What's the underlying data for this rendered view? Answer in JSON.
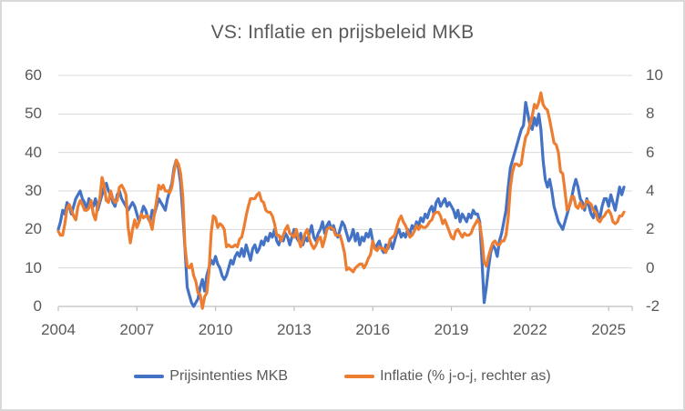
{
  "window": {
    "title": "VS: Inflatie en prijsbeleid MKB"
  },
  "colors": {
    "series_blue": "#4472C4",
    "series_orange": "#ED7D31",
    "gridline": "#D9D9D9",
    "axis_line": "#BFBFBF",
    "text": "#595959",
    "border": "#D9D9D9",
    "background": "#FFFFFF"
  },
  "chart_data": {
    "type": "line",
    "title": "VS: Inflatie en prijsbeleid MKB",
    "xlabel": "",
    "ylabel_left": "",
    "ylabel_right": "",
    "grid": true,
    "legend_position": "bottom",
    "x_start_year": 2004,
    "x_months_per_point": 1,
    "x_tick_years": [
      2004,
      2007,
      2010,
      2013,
      2016,
      2019,
      2022,
      2025
    ],
    "left_axis": {
      "range": [
        0,
        60
      ],
      "ticks": [
        0,
        10,
        20,
        30,
        40,
        50,
        60
      ]
    },
    "right_axis": {
      "range": [
        -2,
        10
      ],
      "ticks": [
        -2,
        0,
        2,
        4,
        6,
        8,
        10
      ]
    },
    "series": [
      {
        "name": "Prijsintenties MKB",
        "axis": "left",
        "color": "#4472C4",
        "values": [
          20,
          22,
          25,
          24,
          27,
          26,
          24,
          26,
          28,
          29,
          30,
          28,
          27,
          25,
          28,
          27,
          26,
          28,
          25,
          27,
          29,
          31,
          32,
          30,
          29,
          27,
          26,
          29,
          30,
          28,
          27,
          26,
          25,
          26,
          27,
          26,
          24,
          22,
          24,
          26,
          25,
          23,
          22,
          25,
          24,
          26,
          28,
          27,
          26,
          25,
          28,
          30,
          32,
          36,
          38,
          36,
          32,
          24,
          15,
          5,
          3,
          1,
          0,
          1,
          2,
          5,
          7,
          4,
          8,
          10,
          12,
          11,
          13,
          11,
          10,
          8,
          7,
          8,
          10,
          12,
          11,
          13,
          14,
          13,
          15,
          13,
          16,
          14,
          12,
          15,
          16,
          14,
          15,
          17,
          16,
          18,
          17,
          19,
          18,
          20,
          17,
          16,
          18,
          17,
          19,
          18,
          16,
          18,
          20,
          18,
          17,
          19,
          16,
          18,
          17,
          19,
          21,
          18,
          17,
          19,
          20,
          22,
          19,
          21,
          22,
          20,
          21,
          19,
          18,
          20,
          22,
          21,
          19,
          17,
          18,
          20,
          17,
          19,
          16,
          18,
          17,
          19,
          18,
          20,
          17,
          15,
          16,
          17,
          15,
          14,
          16,
          15,
          17,
          15,
          17,
          19,
          20,
          18,
          19,
          18,
          20,
          19,
          21,
          20,
          22,
          21,
          23,
          22,
          24,
          23,
          25,
          26,
          24,
          27,
          28,
          26,
          27,
          28,
          26,
          27,
          26,
          25,
          23,
          25,
          22,
          24,
          23,
          22,
          24,
          23,
          25,
          24,
          24,
          22,
          12,
          1,
          5,
          10,
          14,
          16,
          15,
          13,
          17,
          19,
          22,
          25,
          31,
          36,
          38,
          40,
          42,
          44,
          46,
          47,
          53,
          50,
          47,
          46,
          49,
          47,
          50,
          46,
          38,
          33,
          31,
          33,
          30,
          26,
          24,
          22,
          21,
          20,
          22,
          24,
          26,
          28,
          31,
          33,
          31,
          28,
          27,
          25,
          28,
          26,
          24,
          23,
          26,
          24,
          23,
          26,
          28,
          28,
          26,
          29,
          27,
          25,
          28,
          31,
          29,
          31
        ]
      },
      {
        "name": "Inflatie (% j-o-j, rechter as)",
        "axis": "right",
        "color": "#ED7D31",
        "values": [
          1.9,
          1.7,
          1.7,
          2.3,
          3.1,
          3.3,
          3.0,
          2.7,
          2.5,
          3.2,
          3.5,
          3.3,
          3.0,
          3.0,
          3.1,
          3.5,
          2.8,
          2.5,
          3.2,
          3.6,
          4.7,
          4.3,
          3.5,
          3.4,
          4.0,
          3.6,
          3.4,
          3.5,
          4.2,
          4.3,
          4.1,
          3.8,
          2.1,
          1.3,
          2.0,
          2.5,
          2.1,
          2.4,
          2.8,
          2.6,
          2.7,
          2.7,
          2.4,
          2.0,
          2.8,
          3.5,
          4.3,
          4.1,
          4.3,
          4.0,
          4.0,
          3.9,
          4.2,
          5.0,
          5.6,
          5.4,
          4.9,
          3.7,
          1.1,
          0.1,
          0.0,
          0.2,
          -0.4,
          -0.7,
          -1.3,
          -1.4,
          -2.1,
          -1.5,
          -1.3,
          -0.2,
          1.8,
          2.7,
          2.6,
          2.1,
          2.3,
          2.2,
          2.0,
          1.1,
          1.2,
          1.1,
          1.1,
          1.2,
          1.1,
          1.5,
          1.6,
          2.1,
          2.7,
          3.2,
          3.6,
          3.6,
          3.6,
          3.8,
          3.9,
          3.5,
          3.4,
          3.0,
          2.9,
          2.9,
          2.7,
          2.3,
          1.7,
          1.7,
          1.4,
          1.7,
          2.0,
          2.2,
          1.8,
          1.7,
          1.6,
          2.0,
          1.5,
          1.1,
          1.4,
          1.8,
          2.0,
          1.5,
          1.2,
          1.0,
          1.2,
          1.5,
          1.6,
          1.1,
          1.5,
          2.0,
          2.1,
          2.1,
          2.0,
          1.7,
          1.7,
          1.7,
          1.3,
          0.8,
          -0.1,
          0.0,
          -0.1,
          -0.2,
          0.0,
          0.1,
          0.2,
          0.2,
          0.0,
          0.2,
          0.5,
          0.7,
          1.4,
          1.0,
          0.9,
          1.1,
          1.0,
          1.0,
          0.8,
          1.1,
          1.5,
          1.6,
          1.7,
          2.1,
          2.5,
          2.7,
          2.4,
          2.2,
          1.9,
          1.6,
          1.7,
          1.9,
          2.2,
          2.0,
          2.2,
          2.1,
          2.1,
          2.2,
          2.4,
          2.5,
          2.8,
          2.9,
          2.9,
          2.7,
          2.3,
          2.5,
          2.2,
          1.9,
          1.6,
          1.5,
          1.9,
          2.0,
          1.8,
          1.6,
          1.8,
          1.7,
          1.7,
          1.8,
          2.1,
          2.3,
          2.5,
          2.3,
          1.5,
          0.3,
          0.1,
          0.6,
          1.0,
          1.3,
          1.4,
          1.2,
          1.2,
          1.4,
          1.4,
          1.7,
          2.6,
          4.2,
          5.0,
          5.4,
          5.4,
          5.3,
          5.4,
          6.2,
          6.8,
          7.0,
          7.5,
          7.9,
          8.5,
          8.3,
          8.6,
          9.1,
          8.5,
          8.3,
          8.2,
          7.7,
          7.1,
          6.5,
          6.4,
          6.0,
          5.0,
          4.9,
          4.0,
          3.0,
          3.2,
          3.7,
          3.7,
          3.2,
          3.1,
          3.4,
          3.1,
          3.2,
          3.5,
          3.4,
          3.3,
          3.0,
          2.9,
          2.5,
          2.4,
          2.6,
          2.7,
          2.9,
          3.0,
          2.8,
          2.4,
          2.3,
          2.4,
          2.7,
          2.7,
          2.9
        ]
      }
    ]
  },
  "legend": {
    "items": [
      {
        "label": "Prijsintenties MKB",
        "color": "#4472C4"
      },
      {
        "label": "Inflatie (% j-o-j, rechter as)",
        "color": "#ED7D31"
      }
    ]
  }
}
